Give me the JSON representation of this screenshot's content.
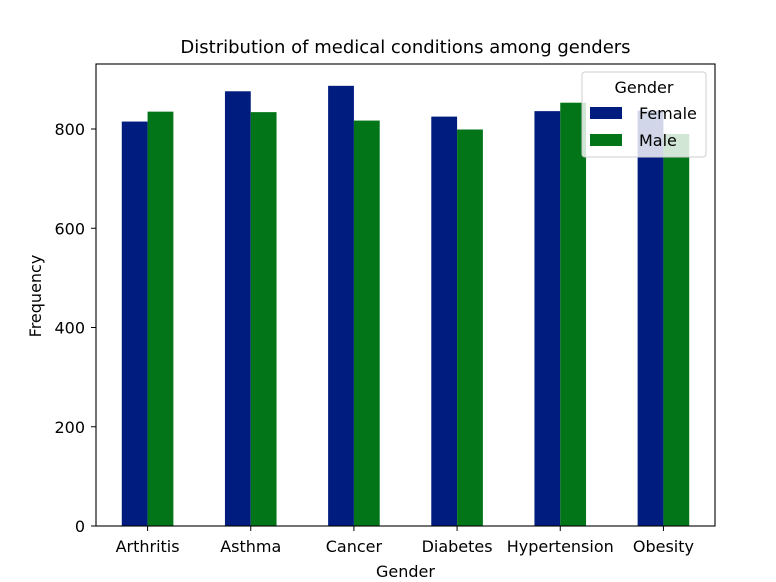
{
  "chart_data": {
    "type": "bar",
    "title": "Distribution of medical conditions among genders",
    "xlabel": "Gender",
    "ylabel": "Frequency",
    "categories": [
      "Arthritis",
      "Asthma",
      "Cancer",
      "Diabetes",
      "Hypertension",
      "Obesity"
    ],
    "series": [
      {
        "name": "Female",
        "color": "#001c7f",
        "values": [
          815,
          876,
          887,
          825,
          836,
          837
        ]
      },
      {
        "name": "Male",
        "color": "#017517",
        "values": [
          835,
          834,
          817,
          799,
          853,
          790
        ]
      }
    ],
    "ylim": [
      0,
      931
    ],
    "yticks": [
      0,
      200,
      400,
      600,
      800
    ],
    "grid": false,
    "legend": {
      "title": "Gender",
      "placement": "top-right"
    }
  }
}
